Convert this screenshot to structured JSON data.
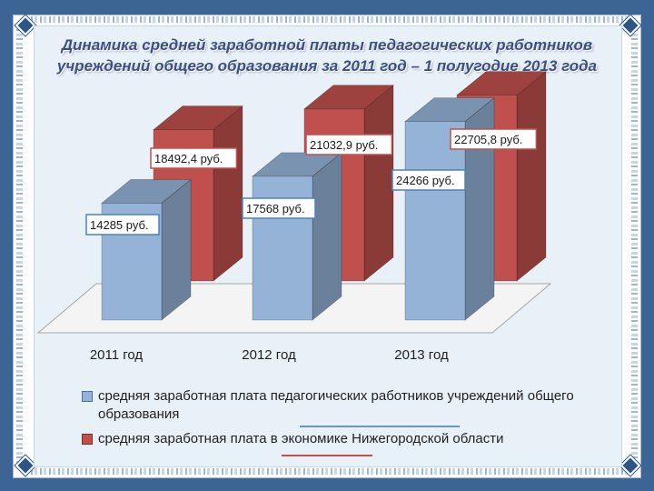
{
  "slide": {
    "title": "Динамика средней заработной платы педагогических работников учреждений общего образования за 2011 год – 1 полугодие 2013 года"
  },
  "colors": {
    "series_blue": "#95b3d7",
    "series_red": "#c0504d",
    "background": "#3c6596",
    "panel": "#e9f1f8"
  },
  "chart_data": {
    "type": "bar",
    "categories": [
      "2011 год",
      "2012 год",
      "2013 год"
    ],
    "series": [
      {
        "name": "средняя заработная плата педагогических работников учреждений общего образования",
        "values": [
          14285,
          17568,
          24266
        ],
        "labels": [
          "14285 руб.",
          "17568 руб.",
          "24266 руб."
        ],
        "color": "#95b3d7"
      },
      {
        "name": "средняя заработная плата в экономике Нижегородской области",
        "values": [
          18492.4,
          21032.9,
          22705.8
        ],
        "labels": [
          "18492,4 руб.",
          "21032,9 руб.",
          "22705,8 руб."
        ],
        "color": "#c0504d"
      }
    ],
    "ylim": [
      0,
      30000
    ],
    "legend": "bottom",
    "grid": false,
    "style": "3d"
  }
}
